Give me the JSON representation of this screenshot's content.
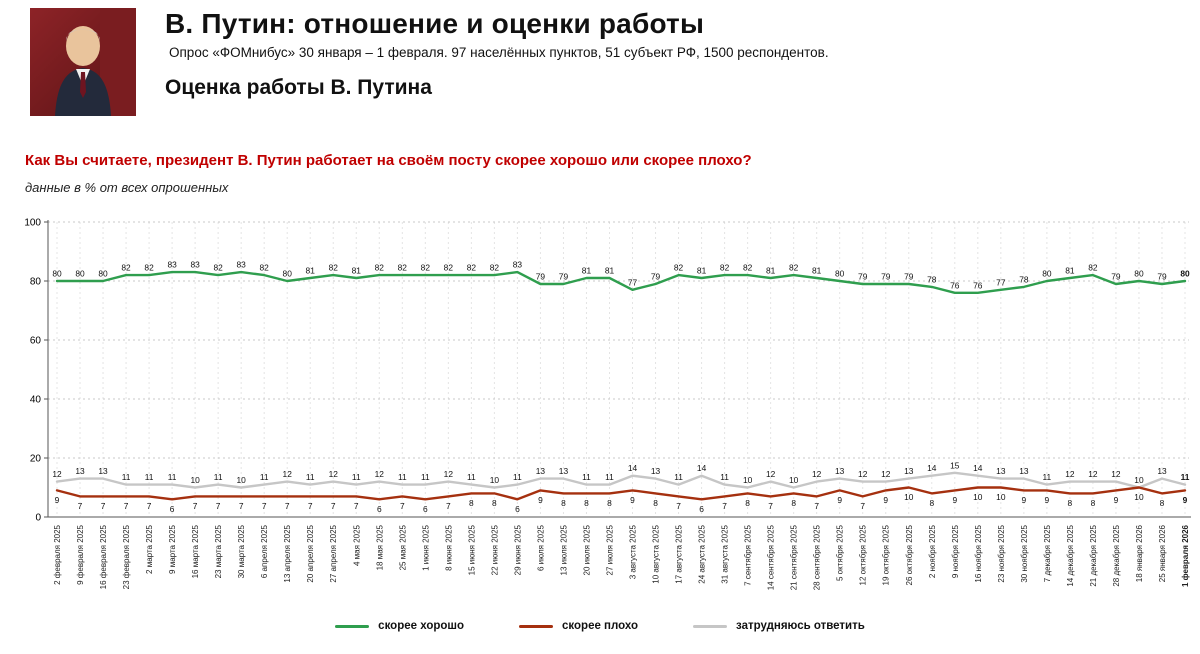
{
  "header": {
    "title": "В. Путин: отношение и оценки работы",
    "subtitle": "Опрос «ФОМнибус» 30 января – 1 февраля. 97 населённых пунктов, 51 субъект РФ, 1500 респондентов.",
    "section_title": "Оценка работы В. Путина"
  },
  "question": "Как Вы считаете, президент В. Путин работает на своём посту скорее хорошо или скорее плохо?",
  "note": "данные в % от всех опрошенных",
  "chart_data": {
    "type": "line",
    "title": "Оценка работы В. Путина",
    "ylabel": "% от всех опрошенных",
    "ylim": [
      0,
      100
    ],
    "yticks": [
      0,
      20,
      40,
      60,
      80,
      100
    ],
    "grid": true,
    "legend_position": "bottom",
    "categories": [
      "2 февраля 2025",
      "9 февраля 2025",
      "16 февраля 2025",
      "23 февраля 2025",
      "2 марта 2025",
      "9 марта 2025",
      "16 марта 2025",
      "23 марта 2025",
      "30 марта 2025",
      "6 апреля 2025",
      "13 апреля 2025",
      "20 апреля 2025",
      "27 апреля 2025",
      "4 мая 2025",
      "18 мая 2025",
      "25 мая 2025",
      "1 июня 2025",
      "8 июня 2025",
      "15 июня 2025",
      "22 июня 2025",
      "29 июня 2025",
      "6 июля 2025",
      "13 июля 2025",
      "20 июля 2025",
      "27 июля 2025",
      "3 августа 2025",
      "10 августа 2025",
      "17 августа 2025",
      "24 августа 2025",
      "31 августа 2025",
      "7 сентября 2025",
      "14 сентября 2025",
      "21 сентября 2025",
      "28 сентября 2025",
      "5 октября 2025",
      "12 октября 2025",
      "19 октября 2025",
      "26 октября 2025",
      "2 ноября 2025",
      "9 ноября 2025",
      "16 ноября 2025",
      "23 ноября 2025",
      "30 ноября 2025",
      "7 декабря 2025",
      "14 декабря 2025",
      "21 декабря 2025",
      "28 декабря 2025",
      "18 января 2026",
      "25 января 2026",
      "1 февраля 2026"
    ],
    "series": [
      {
        "name": "скорее хорошо",
        "color": "#2f9e4e",
        "label_position": "above",
        "values": [
          80,
          80,
          80,
          82,
          82,
          83,
          83,
          82,
          83,
          82,
          80,
          81,
          82,
          81,
          82,
          82,
          82,
          82,
          82,
          82,
          83,
          79,
          79,
          81,
          81,
          77,
          79,
          82,
          81,
          82,
          82,
          81,
          82,
          81,
          80,
          79,
          79,
          79,
          78,
          76,
          76,
          77,
          78,
          80,
          81,
          82,
          79,
          80,
          79,
          80
        ]
      },
      {
        "name": "скорее плохо",
        "color": "#a5300f",
        "label_position": "below",
        "values": [
          9,
          7,
          7,
          7,
          7,
          6,
          7,
          7,
          7,
          7,
          7,
          7,
          7,
          7,
          6,
          7,
          6,
          7,
          8,
          8,
          6,
          9,
          8,
          8,
          8,
          9,
          8,
          7,
          6,
          7,
          8,
          7,
          8,
          7,
          9,
          7,
          9,
          10,
          8,
          9,
          10,
          10,
          9,
          9,
          8,
          8,
          9,
          10,
          8,
          9
        ]
      },
      {
        "name": "затрудняюсь ответить",
        "color": "#c6c6c6",
        "label_position": "above",
        "values": [
          12,
          13,
          13,
          11,
          11,
          11,
          10,
          11,
          10,
          11,
          12,
          11,
          12,
          11,
          12,
          11,
          11,
          12,
          11,
          10,
          11,
          13,
          13,
          11,
          11,
          14,
          13,
          11,
          14,
          11,
          10,
          12,
          10,
          12,
          13,
          12,
          12,
          13,
          14,
          15,
          14,
          13,
          13,
          11,
          12,
          12,
          12,
          10,
          13,
          11
        ]
      }
    ]
  }
}
